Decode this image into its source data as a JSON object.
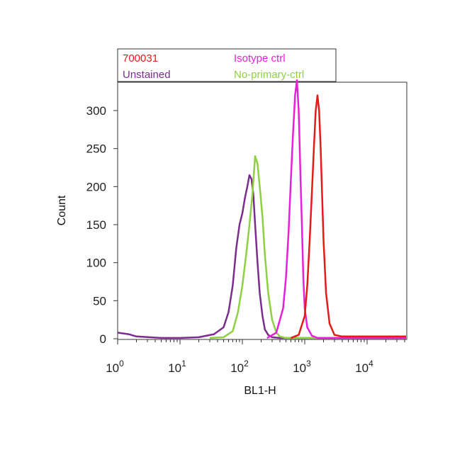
{
  "chart_data": {
    "type": "line",
    "title": "",
    "xlabel": "BL1-H",
    "ylabel": "Count",
    "x_scale": "log",
    "xlim": [
      1,
      60000
    ],
    "ylim": [
      0,
      340
    ],
    "grid": false,
    "legend_placement": "top",
    "x_ticks": [
      {
        "value": 1,
        "base": "10",
        "exp": "0"
      },
      {
        "value": 10,
        "base": "10",
        "exp": "1"
      },
      {
        "value": 100,
        "base": "10",
        "exp": "2"
      },
      {
        "value": 1000,
        "base": "10",
        "exp": "3"
      },
      {
        "value": 10000,
        "base": "10",
        "exp": "4"
      }
    ],
    "y_ticks": [
      {
        "value": 0,
        "label": "0"
      },
      {
        "value": 50,
        "label": "50"
      },
      {
        "value": 100,
        "label": "100"
      },
      {
        "value": 150,
        "label": "150"
      },
      {
        "value": 200,
        "label": "200"
      },
      {
        "value": 250,
        "label": "250"
      },
      {
        "value": 300,
        "label": "300"
      }
    ],
    "series": [
      {
        "name": "Unstained",
        "color": "#7b2d8e",
        "x": [
          1,
          1.5,
          2,
          5,
          10,
          20,
          35,
          50,
          60,
          70,
          80,
          90,
          100,
          110,
          120,
          130,
          140,
          150,
          160,
          175,
          190,
          210,
          230,
          260,
          300,
          400,
          1000,
          5000,
          60000
        ],
        "y": [
          8,
          6,
          3,
          1,
          1,
          2,
          6,
          15,
          35,
          70,
          120,
          150,
          165,
          185,
          200,
          215,
          210,
          190,
          150,
          100,
          60,
          30,
          12,
          5,
          2,
          1,
          1,
          1,
          1
        ]
      },
      {
        "name": "No-primary-ctrl",
        "color": "#8ed043",
        "x": [
          30,
          50,
          70,
          85,
          100,
          115,
          130,
          145,
          160,
          175,
          190,
          210,
          230,
          260,
          300,
          350,
          400,
          500,
          1000,
          60000
        ],
        "y": [
          1,
          2,
          10,
          35,
          70,
          110,
          150,
          190,
          240,
          230,
          200,
          160,
          110,
          60,
          25,
          8,
          3,
          1,
          1,
          1
        ]
      },
      {
        "name": "Isotype ctrl",
        "color": "#e81fd8",
        "x": [
          250,
          350,
          450,
          500,
          550,
          600,
          650,
          700,
          750,
          800,
          850,
          900,
          950,
          1000,
          1100,
          1300,
          1600,
          2000,
          60000
        ],
        "y": [
          1,
          8,
          40,
          80,
          140,
          210,
          270,
          320,
          340,
          300,
          220,
          150,
          80,
          40,
          15,
          4,
          1,
          1,
          1
        ]
      },
      {
        "name": "700031",
        "color": "#e41b17",
        "x": [
          600,
          800,
          1000,
          1100,
          1200,
          1300,
          1400,
          1500,
          1600,
          1700,
          1800,
          1900,
          2000,
          2200,
          2500,
          3000,
          4000,
          60000
        ],
        "y": [
          1,
          5,
          30,
          70,
          130,
          190,
          250,
          300,
          320,
          300,
          250,
          190,
          130,
          60,
          20,
          5,
          3,
          3
        ]
      }
    ]
  },
  "legend": {
    "items": [
      {
        "name": "700031",
        "color": "#e41b17"
      },
      {
        "name": "Isotype ctrl",
        "color": "#e81fd8"
      },
      {
        "name": "Unstained",
        "color": "#7b2d8e"
      },
      {
        "name": "No-primary-ctrl",
        "color": "#8ed043"
      }
    ]
  }
}
